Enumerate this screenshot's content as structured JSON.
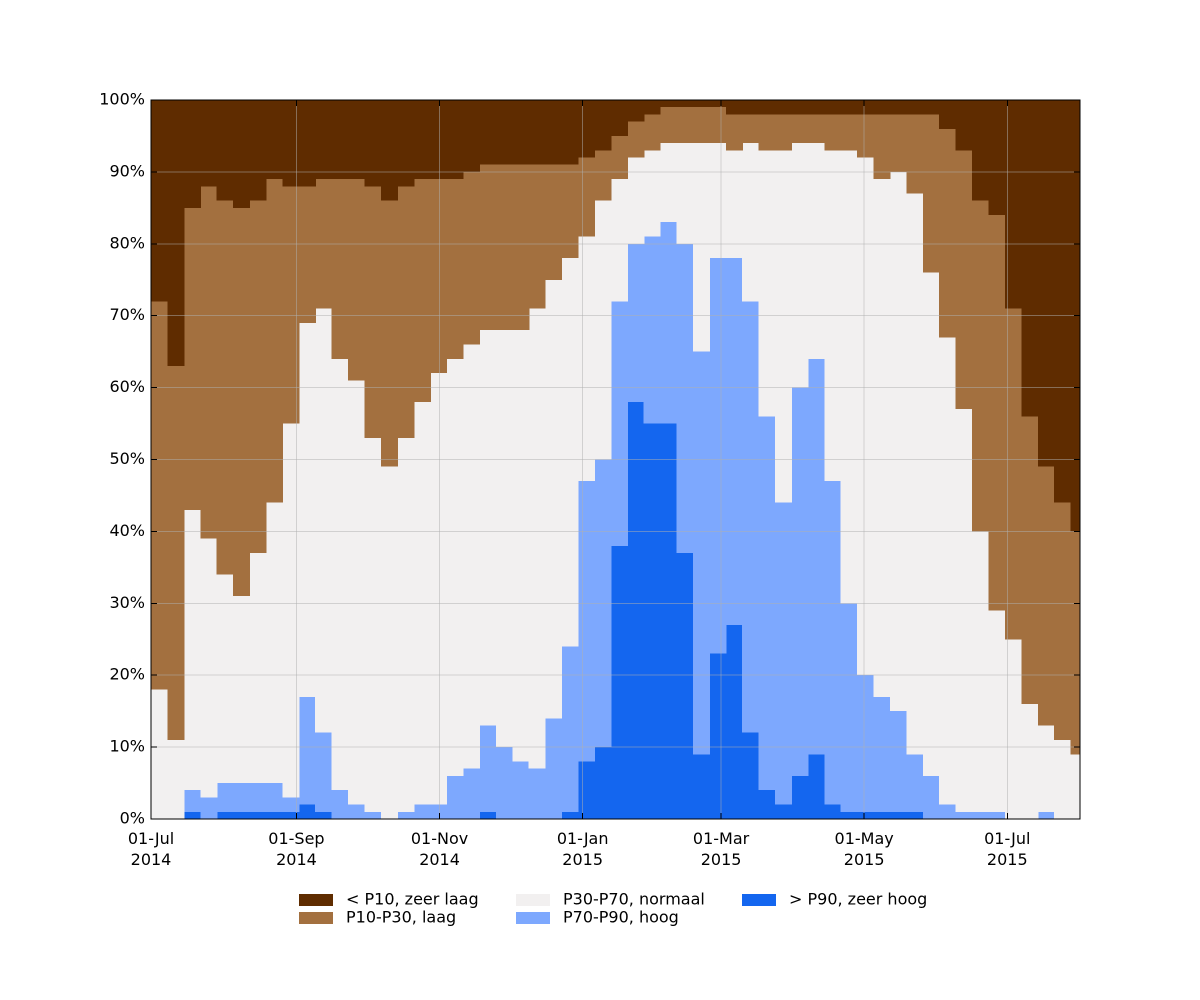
{
  "chart_data": {
    "type": "stacked-step-area",
    "x": [
      "2014-07-01",
      "2014-07-08",
      "2014-07-15",
      "2014-07-22",
      "2014-07-29",
      "2014-08-05",
      "2014-08-12",
      "2014-08-19",
      "2014-08-26",
      "2014-09-02",
      "2014-09-09",
      "2014-09-16",
      "2014-09-23",
      "2014-09-30",
      "2014-10-07",
      "2014-10-14",
      "2014-10-21",
      "2014-10-28",
      "2014-11-04",
      "2014-11-11",
      "2014-11-18",
      "2014-11-25",
      "2014-12-02",
      "2014-12-09",
      "2014-12-16",
      "2014-12-23",
      "2014-12-30",
      "2015-01-06",
      "2015-01-13",
      "2015-01-20",
      "2015-01-27",
      "2015-02-03",
      "2015-02-10",
      "2015-02-17",
      "2015-02-24",
      "2015-03-03",
      "2015-03-10",
      "2015-03-17",
      "2015-03-24",
      "2015-03-31",
      "2015-04-07",
      "2015-04-14",
      "2015-04-21",
      "2015-04-28",
      "2015-05-05",
      "2015-05-12",
      "2015-05-19",
      "2015-05-26",
      "2015-06-02",
      "2015-06-09",
      "2015-06-16",
      "2015-06-23",
      "2015-06-30",
      "2015-07-07",
      "2015-07-14",
      "2015-07-21",
      "2015-07-28"
    ],
    "series": [
      {
        "name": "< P10, zeer laag",
        "color": "#5f2c00",
        "values": [
          28,
          37,
          15,
          12,
          14,
          15,
          14,
          11,
          12,
          12,
          11,
          11,
          11,
          12,
          14,
          12,
          11,
          11,
          11,
          10,
          9,
          9,
          9,
          9,
          9,
          9,
          8,
          7,
          5,
          3,
          2,
          1,
          1,
          1,
          1,
          2,
          2,
          2,
          2,
          2,
          2,
          2,
          2,
          2,
          2,
          2,
          2,
          2,
          4,
          7,
          14,
          16,
          29,
          44,
          51,
          56,
          60
        ]
      },
      {
        "name": "P10-P30, laag",
        "color": "#a3703f",
        "values": [
          54,
          52,
          42,
          49,
          52,
          54,
          49,
          45,
          33,
          19,
          18,
          25,
          28,
          35,
          37,
          35,
          31,
          27,
          25,
          24,
          23,
          23,
          23,
          20,
          16,
          13,
          11,
          7,
          6,
          5,
          5,
          5,
          5,
          5,
          5,
          5,
          4,
          5,
          5,
          4,
          4,
          5,
          5,
          6,
          9,
          8,
          11,
          22,
          29,
          36,
          46,
          55,
          46,
          40,
          36,
          33,
          31
        ]
      },
      {
        "name": "P30-P70, normaal",
        "color": "#f2f0f0",
        "values": [
          18,
          11,
          39,
          36,
          29,
          26,
          32,
          39,
          52,
          52,
          59,
          60,
          59,
          52,
          49,
          52,
          56,
          60,
          58,
          59,
          55,
          58,
          60,
          64,
          61,
          54,
          34,
          36,
          17,
          12,
          12,
          11,
          14,
          29,
          16,
          15,
          22,
          37,
          49,
          34,
          30,
          46,
          63,
          72,
          72,
          75,
          78,
          70,
          65,
          56,
          39,
          28,
          25,
          16,
          12,
          11,
          9
        ]
      },
      {
        "name": "P70-P90, hoog",
        "color": "#7da8fe",
        "values": [
          0,
          0,
          3,
          3,
          4,
          4,
          4,
          4,
          2,
          15,
          11,
          4,
          2,
          1,
          0,
          1,
          2,
          2,
          6,
          7,
          12,
          10,
          8,
          7,
          14,
          23,
          39,
          40,
          34,
          22,
          26,
          28,
          43,
          56,
          55,
          51,
          60,
          52,
          42,
          54,
          55,
          45,
          29,
          19,
          16,
          14,
          8,
          6,
          2,
          1,
          1,
          1,
          0,
          0,
          1,
          0,
          0
        ]
      },
      {
        "name": "> P90, zeer hoog",
        "color": "#1466ef",
        "values": [
          0,
          0,
          1,
          0,
          1,
          1,
          1,
          1,
          1,
          2,
          1,
          0,
          0,
          0,
          0,
          0,
          0,
          0,
          0,
          0,
          1,
          0,
          0,
          0,
          0,
          1,
          8,
          10,
          38,
          58,
          55,
          55,
          37,
          9,
          23,
          27,
          12,
          4,
          2,
          6,
          9,
          2,
          1,
          1,
          1,
          1,
          1,
          0,
          0,
          0,
          0,
          0,
          0,
          0,
          0,
          0,
          0
        ]
      }
    ],
    "xlim": [
      "2014-07-01",
      "2015-08-01"
    ],
    "xticks": [
      {
        "value": "2014-07-01",
        "label": "01-Jul 2014"
      },
      {
        "value": "2014-09-01",
        "label": "01-Sep 2014"
      },
      {
        "value": "2014-11-01",
        "label": "01-Nov 2014"
      },
      {
        "value": "2015-01-01",
        "label": "01-Jan 2015"
      },
      {
        "value": "2015-03-01",
        "label": "01-Mar 2015"
      },
      {
        "value": "2015-05-01",
        "label": "01-May 2015"
      },
      {
        "value": "2015-07-01",
        "label": "01-Jul 2015"
      }
    ],
    "ylim": [
      0,
      100
    ],
    "yticks": [
      {
        "value": 0,
        "label": "0%"
      },
      {
        "value": 10,
        "label": "10%"
      },
      {
        "value": 20,
        "label": "20%"
      },
      {
        "value": 30,
        "label": "30%"
      },
      {
        "value": 40,
        "label": "40%"
      },
      {
        "value": 50,
        "label": "50%"
      },
      {
        "value": 60,
        "label": "60%"
      },
      {
        "value": 70,
        "label": "70%"
      },
      {
        "value": 80,
        "label": "80%"
      },
      {
        "value": 90,
        "label": "90%"
      },
      {
        "value": 100,
        "label": "100%"
      }
    ],
    "grid": true,
    "legend": "bottom"
  }
}
